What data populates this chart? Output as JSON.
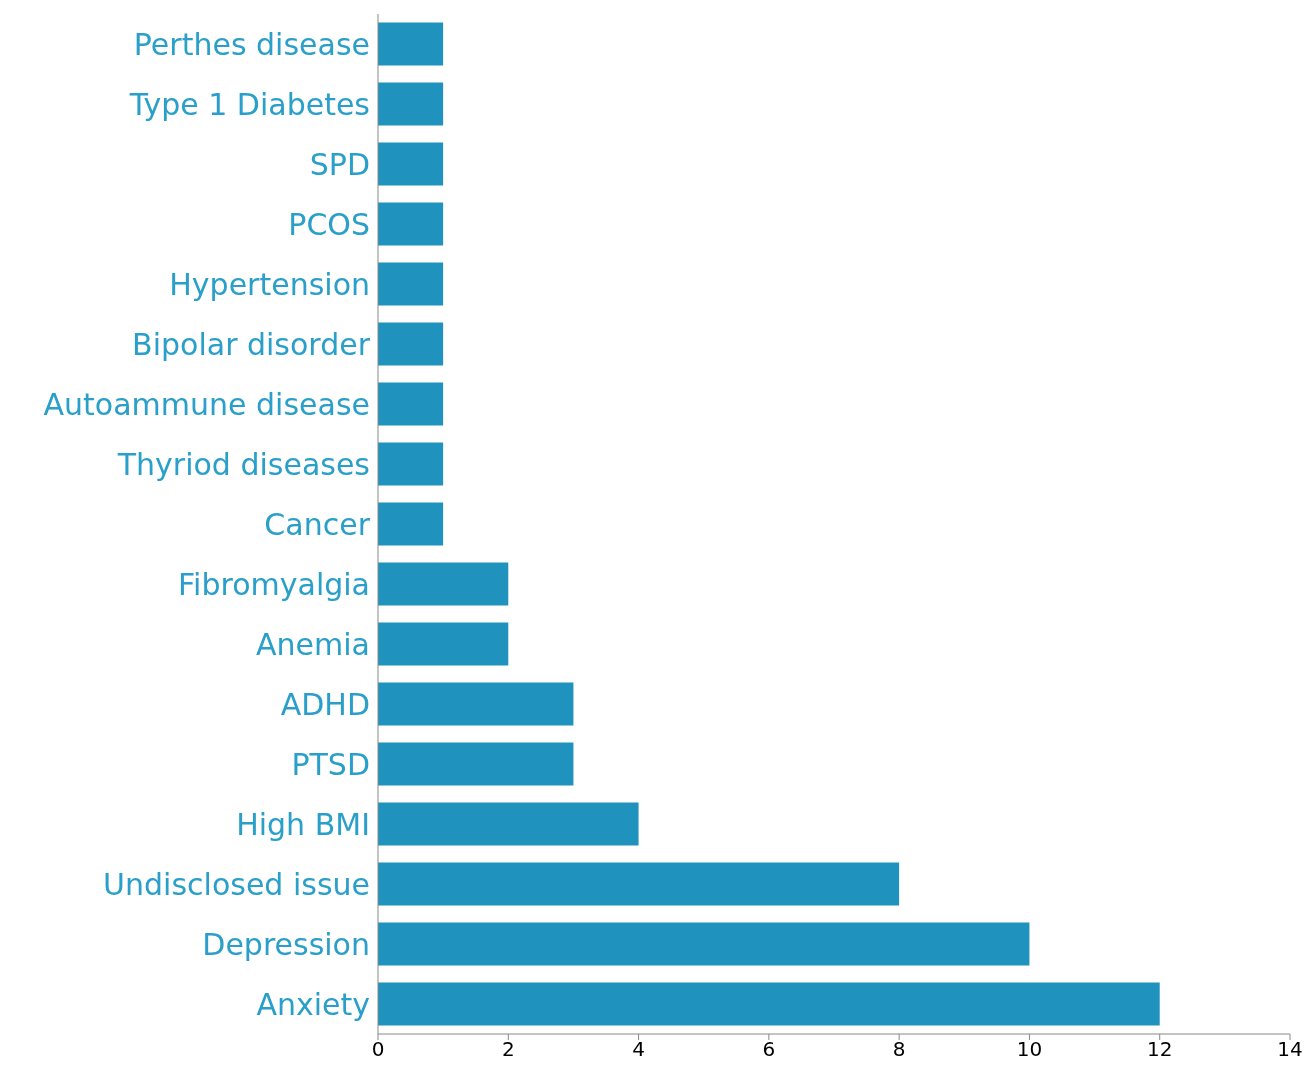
{
  "chart_data": {
    "type": "bar",
    "orientation": "horizontal",
    "categories": [
      "Perthes disease",
      "Type 1 Diabetes",
      "SPD",
      "PCOS",
      "Hypertension",
      "Bipolar  disorder",
      "Autoammune disease",
      "Thyriod diseases",
      "Cancer",
      "Fibromyalgia",
      "Anemia",
      "ADHD",
      "PTSD",
      "High BMI",
      "Undisclosed issue",
      "Depression",
      "Anxiety"
    ],
    "values": [
      1,
      1,
      1,
      1,
      1,
      1,
      1,
      1,
      1,
      2,
      2,
      3,
      3,
      4,
      8,
      10,
      12
    ],
    "color": "#1f93bd",
    "xlim": [
      0,
      14
    ],
    "xticks": [
      0,
      2,
      4,
      6,
      8,
      10,
      12,
      14
    ]
  }
}
